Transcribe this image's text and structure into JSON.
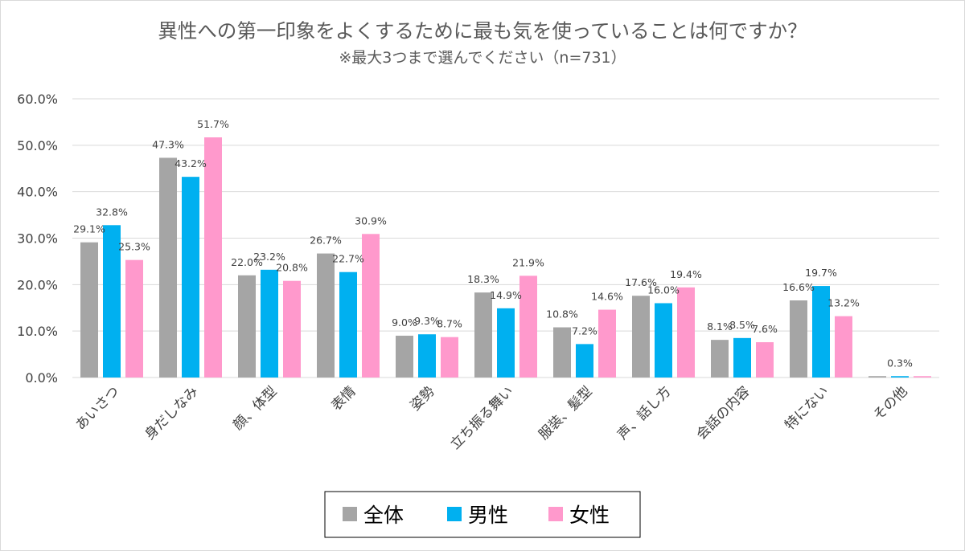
{
  "chart_data": {
    "type": "bar",
    "title": "異性への第一印象をよくするために最も気を使っていることは何ですか？",
    "subtitle": "※最大3つまで選んでください（n=731）",
    "categories": [
      "あいさつ",
      "身だしなみ",
      "顔、体型",
      "表情",
      "姿勢",
      "立ち振る舞い",
      "服装、髪型",
      "声、話し方",
      "会話の内容",
      "特にない",
      "その他"
    ],
    "series": [
      {
        "name": "全体",
        "color": "#a5a5a5",
        "values": [
          29.1,
          47.3,
          22.0,
          26.7,
          9.0,
          18.3,
          10.8,
          17.6,
          8.1,
          16.6,
          0.3
        ]
      },
      {
        "name": "男性",
        "color": "#00b0f0",
        "values": [
          32.8,
          43.2,
          23.2,
          22.7,
          9.3,
          14.9,
          7.2,
          16.0,
          8.5,
          19.7,
          0.3
        ]
      },
      {
        "name": "女性",
        "color": "#ff99cc",
        "values": [
          25.3,
          51.7,
          20.8,
          30.9,
          8.7,
          21.9,
          14.6,
          19.4,
          7.6,
          13.2,
          0.3
        ]
      }
    ],
    "data_labels": [
      [
        "29.1%",
        "47.3%",
        "22.0%",
        "26.7%",
        "9.0%",
        "18.3%",
        "10.8%",
        "17.6%",
        "8.1%",
        "16.6%",
        ""
      ],
      [
        "32.8%",
        "43.2%",
        "23.2%",
        "22.7%",
        "9.3%",
        "14.9%",
        "7.2%",
        "16.0%",
        "8.5%",
        "19.7%",
        "0.3%"
      ],
      [
        "25.3%",
        "51.7%",
        "20.8%",
        "30.9%",
        "8.7%",
        "21.9%",
        "14.6%",
        "19.4%",
        "7.6%",
        "13.2%",
        ""
      ]
    ],
    "y_ticks": [
      "0.0%",
      "10.0%",
      "20.0%",
      "30.0%",
      "40.0%",
      "50.0%",
      "60.0%"
    ],
    "ylim": [
      0,
      60
    ],
    "grid": true,
    "legend_position": "bottom"
  }
}
